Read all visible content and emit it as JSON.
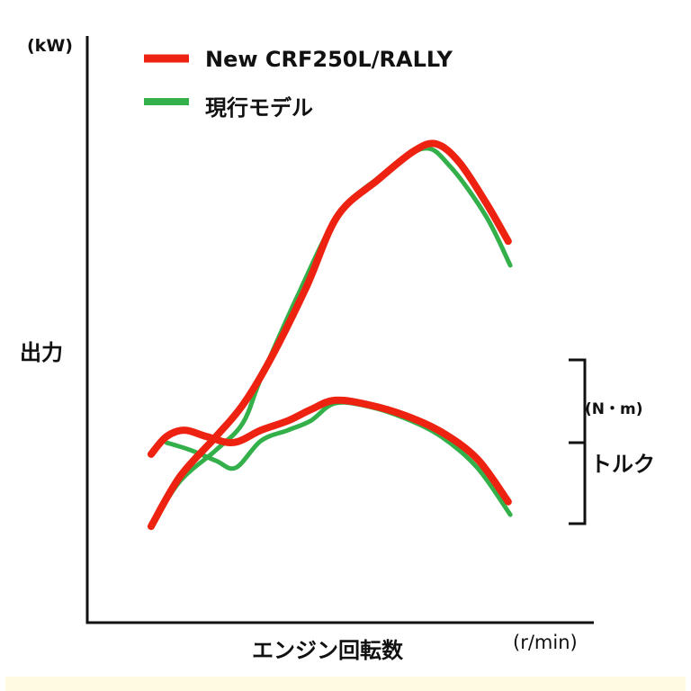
{
  "chart_data": {
    "type": "line",
    "title": "",
    "xlabel": "エンジン回転数",
    "xunit": "(r/min)",
    "ylabel": "出力",
    "yunit": "(kW)",
    "y2label": "トルク",
    "y2unit": "(N・m)",
    "xlim": [
      0,
      100
    ],
    "ylim": [
      0,
      100
    ],
    "grid": false,
    "legend_position": "top-left",
    "legend": [
      "New CRF250L/RALLY",
      "現行モデル"
    ],
    "series": [
      {
        "name": "New CRF250L/RALLY",
        "metric": "出力",
        "color": "#ee2211",
        "x": [
          12.6,
          18.3,
          25.4,
          30.7,
          36.1,
          43.2,
          49.4,
          57.4,
          64.5,
          68.9,
          73.4,
          78.7,
          83.1
        ],
        "y": [
          16.4,
          24.9,
          31.7,
          37.1,
          44.8,
          57.1,
          69.3,
          75.5,
          80.4,
          81.6,
          78.5,
          71.6,
          65.0
        ]
      },
      {
        "name": "現行モデル",
        "metric": "出力",
        "color": "#33b04a",
        "x": [
          12.6,
          18.3,
          25.4,
          30.7,
          34.3,
          41.4,
          49.4,
          57.4,
          66.3,
          71.6,
          78.7,
          83.5
        ],
        "y": [
          16.4,
          24.1,
          29.4,
          34.0,
          41.7,
          55.5,
          69.3,
          75.8,
          80.8,
          77.8,
          69.3,
          60.9
        ]
      },
      {
        "name": "New CRF250L/RALLY",
        "metric": "トルク",
        "color": "#ee2211",
        "x": [
          12.6,
          15.6,
          19.2,
          23.6,
          28.9,
          34.3,
          39.6,
          44.1,
          48.9,
          55.7,
          62.8,
          69.9,
          77.0,
          83.1
        ],
        "y": [
          28.7,
          31.7,
          32.8,
          31.7,
          30.7,
          32.8,
          34.4,
          36.3,
          37.9,
          37.1,
          35.3,
          32.5,
          27.9,
          20.6
        ]
      },
      {
        "name": "現行モデル",
        "metric": "トルク",
        "color": "#33b04a",
        "x": [
          15.6,
          20.4,
          25.4,
          29.3,
          34.3,
          39.6,
          44.1,
          48.9,
          55.7,
          62.8,
          69.9,
          77.0,
          83.5
        ],
        "y": [
          30.7,
          29.4,
          27.6,
          26.4,
          31.0,
          32.8,
          34.4,
          37.4,
          36.8,
          34.8,
          31.7,
          26.4,
          18.4
        ]
      }
    ]
  }
}
